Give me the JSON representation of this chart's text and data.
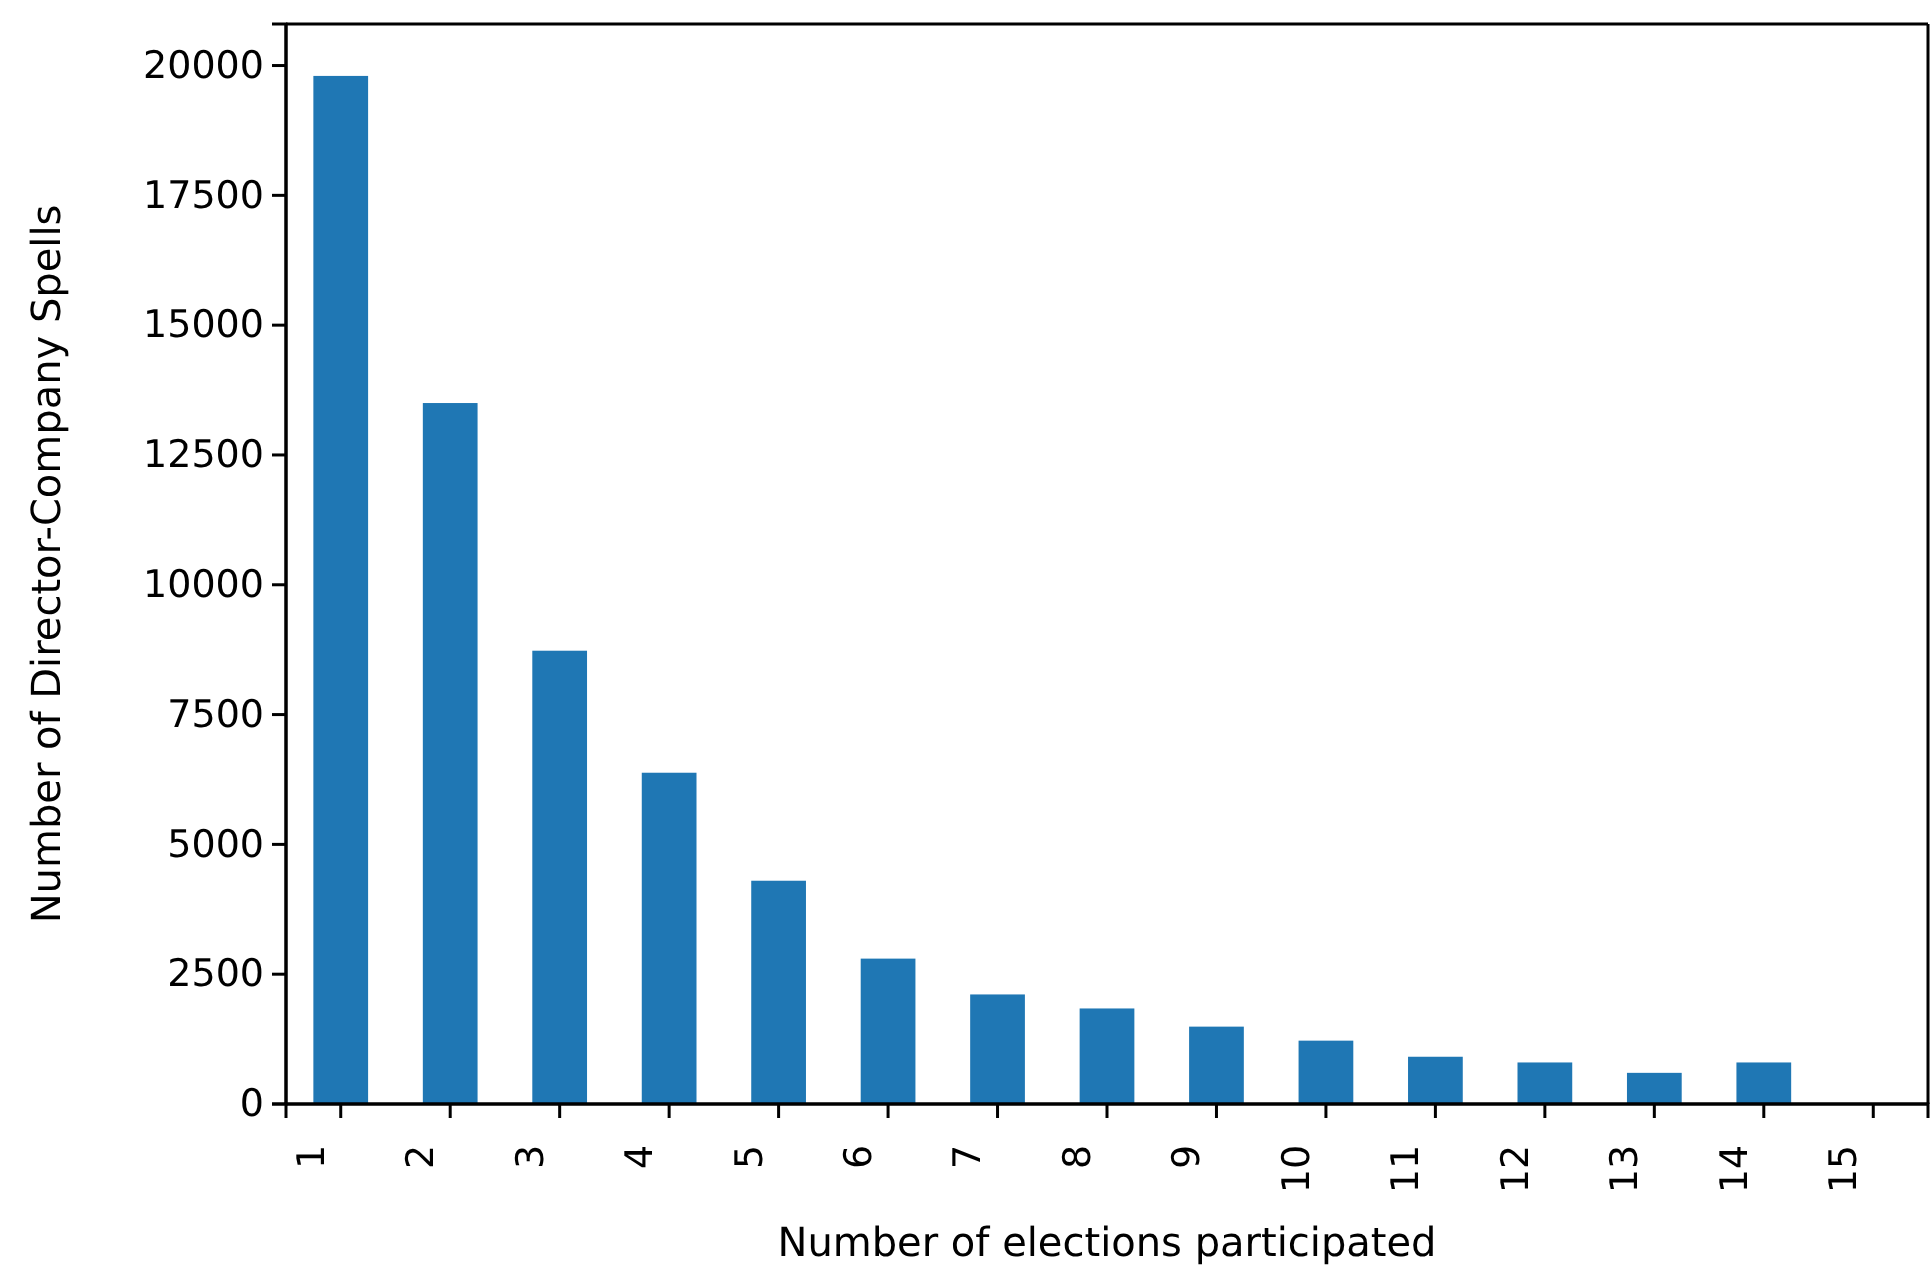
{
  "chart_data": {
    "type": "bar",
    "xlabel": "Number of elections participated",
    "ylabel": "Number of Director-Company Spells",
    "categories": [
      "1",
      "2",
      "3",
      "4",
      "5",
      "6",
      "7",
      "8",
      "9",
      "10",
      "11",
      "12",
      "13",
      "14",
      "15"
    ],
    "values": [
      19800,
      13500,
      8730,
      6380,
      4300,
      2800,
      2110,
      1840,
      1490,
      1220,
      910,
      800,
      600,
      800,
      0
    ],
    "color": "#1f77b4",
    "ylim": [
      0,
      20800
    ],
    "yticks": [
      0,
      2500,
      5000,
      7500,
      10000,
      12500,
      15000,
      17500,
      20000
    ],
    "grid": false
  }
}
